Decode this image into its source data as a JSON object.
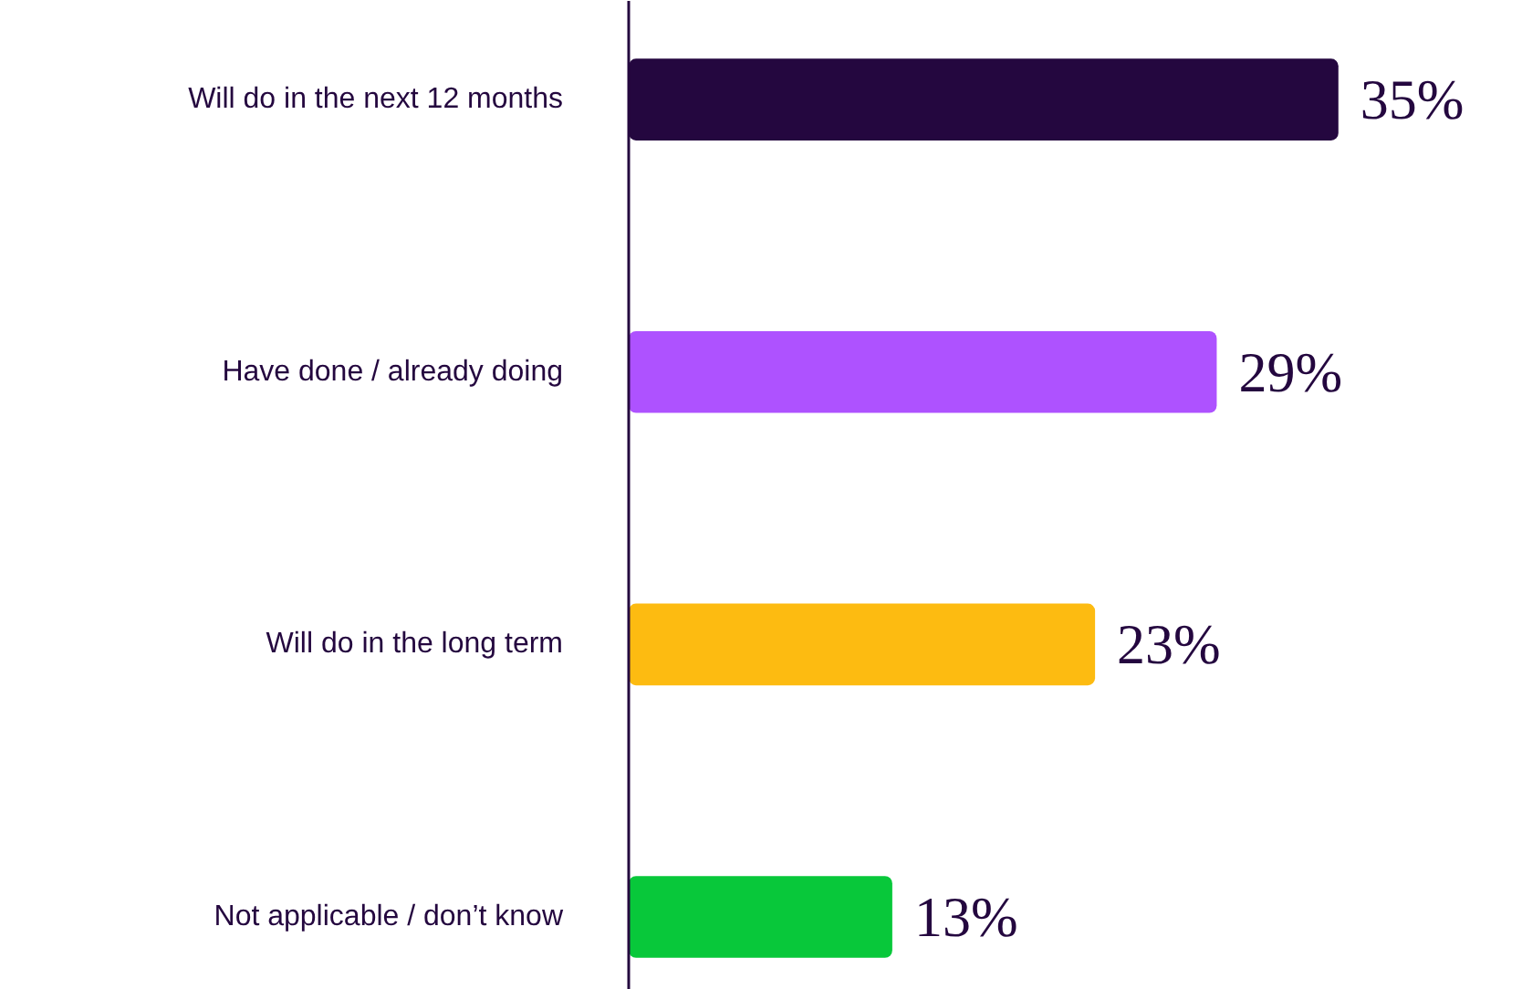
{
  "chart_data": {
    "type": "bar",
    "orientation": "horizontal",
    "categories": [
      "Will do in the next 12 months",
      "Have done / already doing",
      "Will do in the long term",
      "Not applicable / don’t know"
    ],
    "values": [
      35,
      29,
      23,
      13
    ],
    "colors": [
      "#24073f",
      "#ae52ff",
      "#fdbb11",
      "#08c83a"
    ],
    "value_labels": [
      "35%",
      "29%",
      "23%",
      "13%"
    ],
    "grid": false
  }
}
